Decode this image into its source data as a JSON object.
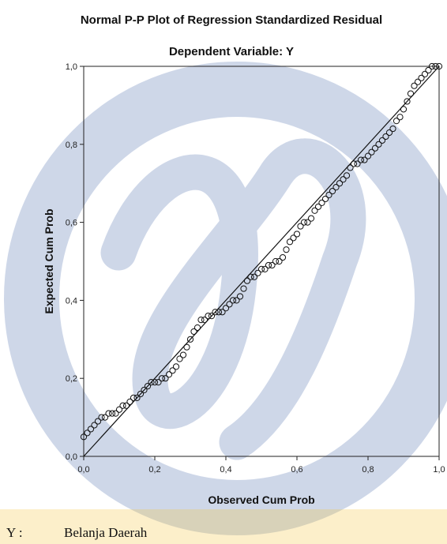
{
  "chart_data": {
    "type": "scatter",
    "title": "Normal P-P Plot of Regression Standardized Residual",
    "subtitle": "Dependent Variable: Y",
    "xlabel": "Observed Cum Prob",
    "ylabel": "Expected Cum Prob",
    "xlim": [
      0,
      1
    ],
    "ylim": [
      0,
      1
    ],
    "x_ticks": [
      "0,0",
      "0,2",
      "0,4",
      "0,6",
      "0,8",
      "1,0"
    ],
    "y_ticks": [
      "0,0",
      "0,2",
      "0,4",
      "0,6",
      "0,8",
      "1,0"
    ],
    "reference_line": [
      [
        0,
        0
      ],
      [
        1,
        1
      ]
    ],
    "grid": false,
    "points": [
      [
        0.0,
        0.05
      ],
      [
        0.01,
        0.06
      ],
      [
        0.02,
        0.07
      ],
      [
        0.03,
        0.08
      ],
      [
        0.04,
        0.09
      ],
      [
        0.05,
        0.1
      ],
      [
        0.06,
        0.1
      ],
      [
        0.07,
        0.11
      ],
      [
        0.08,
        0.11
      ],
      [
        0.09,
        0.11
      ],
      [
        0.1,
        0.12
      ],
      [
        0.11,
        0.13
      ],
      [
        0.12,
        0.13
      ],
      [
        0.13,
        0.14
      ],
      [
        0.14,
        0.15
      ],
      [
        0.15,
        0.15
      ],
      [
        0.16,
        0.16
      ],
      [
        0.17,
        0.17
      ],
      [
        0.18,
        0.18
      ],
      [
        0.19,
        0.19
      ],
      [
        0.2,
        0.19
      ],
      [
        0.21,
        0.19
      ],
      [
        0.22,
        0.2
      ],
      [
        0.23,
        0.2
      ],
      [
        0.24,
        0.21
      ],
      [
        0.25,
        0.22
      ],
      [
        0.26,
        0.23
      ],
      [
        0.27,
        0.25
      ],
      [
        0.28,
        0.26
      ],
      [
        0.29,
        0.28
      ],
      [
        0.3,
        0.3
      ],
      [
        0.31,
        0.32
      ],
      [
        0.32,
        0.33
      ],
      [
        0.33,
        0.35
      ],
      [
        0.34,
        0.35
      ],
      [
        0.35,
        0.36
      ],
      [
        0.36,
        0.36
      ],
      [
        0.37,
        0.37
      ],
      [
        0.38,
        0.37
      ],
      [
        0.39,
        0.37
      ],
      [
        0.4,
        0.38
      ],
      [
        0.41,
        0.39
      ],
      [
        0.42,
        0.4
      ],
      [
        0.43,
        0.4
      ],
      [
        0.44,
        0.41
      ],
      [
        0.45,
        0.43
      ],
      [
        0.46,
        0.45
      ],
      [
        0.47,
        0.46
      ],
      [
        0.48,
        0.46
      ],
      [
        0.49,
        0.47
      ],
      [
        0.5,
        0.48
      ],
      [
        0.51,
        0.48
      ],
      [
        0.52,
        0.49
      ],
      [
        0.53,
        0.49
      ],
      [
        0.54,
        0.5
      ],
      [
        0.55,
        0.5
      ],
      [
        0.56,
        0.51
      ],
      [
        0.57,
        0.53
      ],
      [
        0.58,
        0.55
      ],
      [
        0.59,
        0.56
      ],
      [
        0.6,
        0.57
      ],
      [
        0.61,
        0.59
      ],
      [
        0.62,
        0.6
      ],
      [
        0.63,
        0.6
      ],
      [
        0.64,
        0.61
      ],
      [
        0.65,
        0.63
      ],
      [
        0.66,
        0.64
      ],
      [
        0.67,
        0.65
      ],
      [
        0.68,
        0.66
      ],
      [
        0.69,
        0.67
      ],
      [
        0.7,
        0.68
      ],
      [
        0.71,
        0.69
      ],
      [
        0.72,
        0.7
      ],
      [
        0.73,
        0.71
      ],
      [
        0.74,
        0.72
      ],
      [
        0.75,
        0.74
      ],
      [
        0.76,
        0.75
      ],
      [
        0.77,
        0.75
      ],
      [
        0.78,
        0.76
      ],
      [
        0.79,
        0.76
      ],
      [
        0.8,
        0.77
      ],
      [
        0.81,
        0.78
      ],
      [
        0.82,
        0.79
      ],
      [
        0.83,
        0.8
      ],
      [
        0.84,
        0.81
      ],
      [
        0.85,
        0.82
      ],
      [
        0.86,
        0.83
      ],
      [
        0.87,
        0.84
      ],
      [
        0.88,
        0.86
      ],
      [
        0.89,
        0.87
      ],
      [
        0.9,
        0.89
      ],
      [
        0.91,
        0.91
      ],
      [
        0.92,
        0.93
      ],
      [
        0.93,
        0.95
      ],
      [
        0.94,
        0.96
      ],
      [
        0.95,
        0.97
      ],
      [
        0.96,
        0.98
      ],
      [
        0.97,
        0.99
      ],
      [
        0.98,
        1.0
      ],
      [
        0.99,
        1.0
      ],
      [
        1.0,
        1.0
      ]
    ],
    "marker": "open-circle",
    "colors": {
      "points": "#111111",
      "line": "#111111",
      "frame": "#222222"
    }
  },
  "footnote": {
    "symbol": "Y :",
    "text": "Belanja Daerah"
  },
  "watermark": {
    "colors": {
      "ring": "#3f62a8",
      "band_top": "#f2c94c",
      "band_bottom": "#f4b942"
    }
  }
}
